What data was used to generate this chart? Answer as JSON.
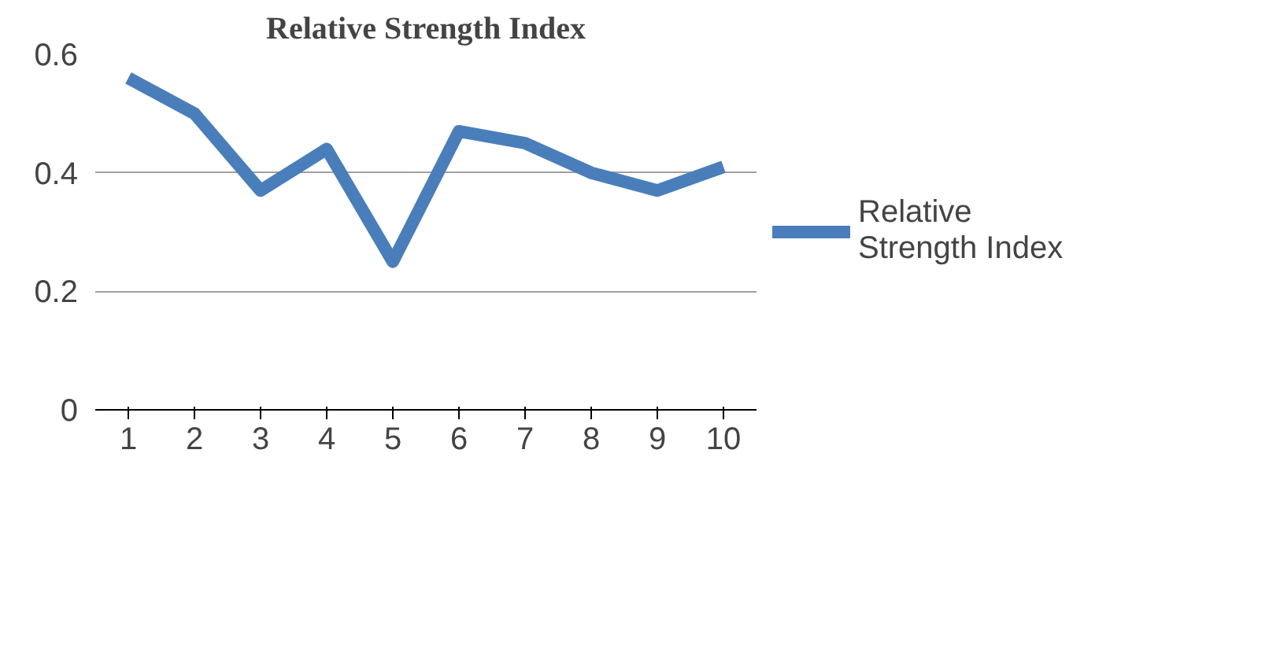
{
  "chart_data": {
    "type": "line",
    "title": "Relative Strength Index",
    "categories": [
      "1",
      "2",
      "3",
      "4",
      "5",
      "6",
      "7",
      "8",
      "9",
      "10"
    ],
    "series": [
      {
        "name": "Relative Strength Index",
        "color": "#4a7ebb",
        "values": [
          0.56,
          0.5,
          0.37,
          0.44,
          0.25,
          0.47,
          0.45,
          0.4,
          0.37,
          0.41
        ]
      }
    ],
    "ylim": [
      0,
      0.6
    ],
    "yticks": [
      {
        "value": 0,
        "label": "0"
      },
      0.2,
      0.4,
      0.6
    ],
    "grid": "y",
    "legend": "right",
    "marker": "none",
    "line_style": "solid"
  }
}
